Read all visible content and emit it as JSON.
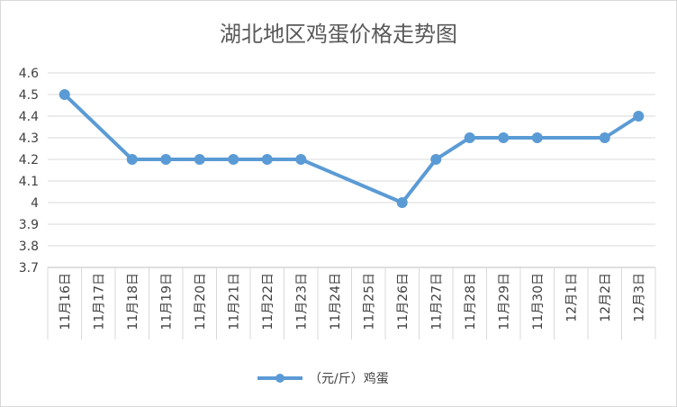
{
  "chart_data": {
    "type": "line",
    "title": "湖北地区鸡蛋价格走势图",
    "categories": [
      "11月16日",
      "11月17日",
      "11月18日",
      "11月19日",
      "11月20日",
      "11月21日",
      "11月22日",
      "11月23日",
      "11月24日",
      "11月25日",
      "11月26日",
      "11月27日",
      "11月28日",
      "11月29日",
      "11月30日",
      "12月1日",
      "12月2日",
      "12月3日"
    ],
    "series": [
      {
        "name": "（元/斤）鸡蛋",
        "values": [
          4.5,
          null,
          4.2,
          4.2,
          4.2,
          4.2,
          4.2,
          4.2,
          null,
          null,
          4.0,
          4.2,
          4.3,
          4.3,
          4.3,
          null,
          4.3,
          4.4
        ]
      }
    ],
    "yticks": [
      "4.6",
      "4.5",
      "4.4",
      "4.3",
      "4.2",
      "4.1",
      "4",
      "3.9",
      "3.8",
      "3.7"
    ],
    "ylim": [
      3.7,
      4.6
    ],
    "xlabel": "",
    "ylabel": "",
    "grid": true,
    "legend": "bottom",
    "colors": {
      "series": "#5b9bd5",
      "grid": "#d9d9d9",
      "axis": "#bfbfbf"
    }
  }
}
